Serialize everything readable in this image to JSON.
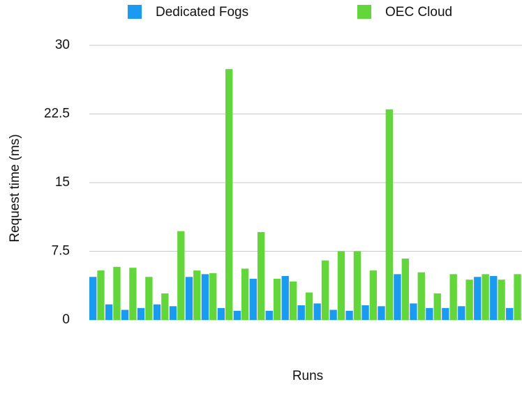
{
  "chart_data": {
    "type": "bar",
    "x_label": "Runs",
    "y_label": "Request time (ms)",
    "categories": [
      null,
      null,
      null,
      null,
      null,
      null,
      null,
      null,
      null,
      null,
      null,
      null,
      null,
      null,
      null,
      null,
      null,
      null,
      null,
      null,
      null,
      null,
      null,
      null,
      null,
      null,
      null
    ],
    "series": [
      {
        "name": "Dedicated Fogs",
        "color": "#1a9bf0",
        "values": [
          4.7,
          1.7,
          1.1,
          1.3,
          1.7,
          1.5,
          4.7,
          5.0,
          1.3,
          1.0,
          4.5,
          1.0,
          4.8,
          1.6,
          1.8,
          1.1,
          1.0,
          1.6,
          1.5,
          5.0,
          1.8,
          1.3,
          1.3,
          1.5,
          4.7,
          4.8,
          1.3
        ]
      },
      {
        "name": "OEC Cloud",
        "color": "#62d63a",
        "values": [
          5.4,
          5.8,
          5.7,
          4.7,
          2.9,
          9.7,
          5.4,
          5.1,
          27.4,
          5.6,
          9.6,
          4.5,
          4.2,
          3.0,
          6.5,
          7.5,
          7.5,
          5.4,
          23.0,
          6.7,
          5.2,
          2.9,
          5.0,
          4.4,
          5.0,
          4.4,
          5.0
        ]
      }
    ],
    "ylim": [
      0,
      30
    ],
    "yticks": [
      0,
      7.5,
      15,
      22.5,
      30
    ],
    "grid": true,
    "legend": "top"
  }
}
